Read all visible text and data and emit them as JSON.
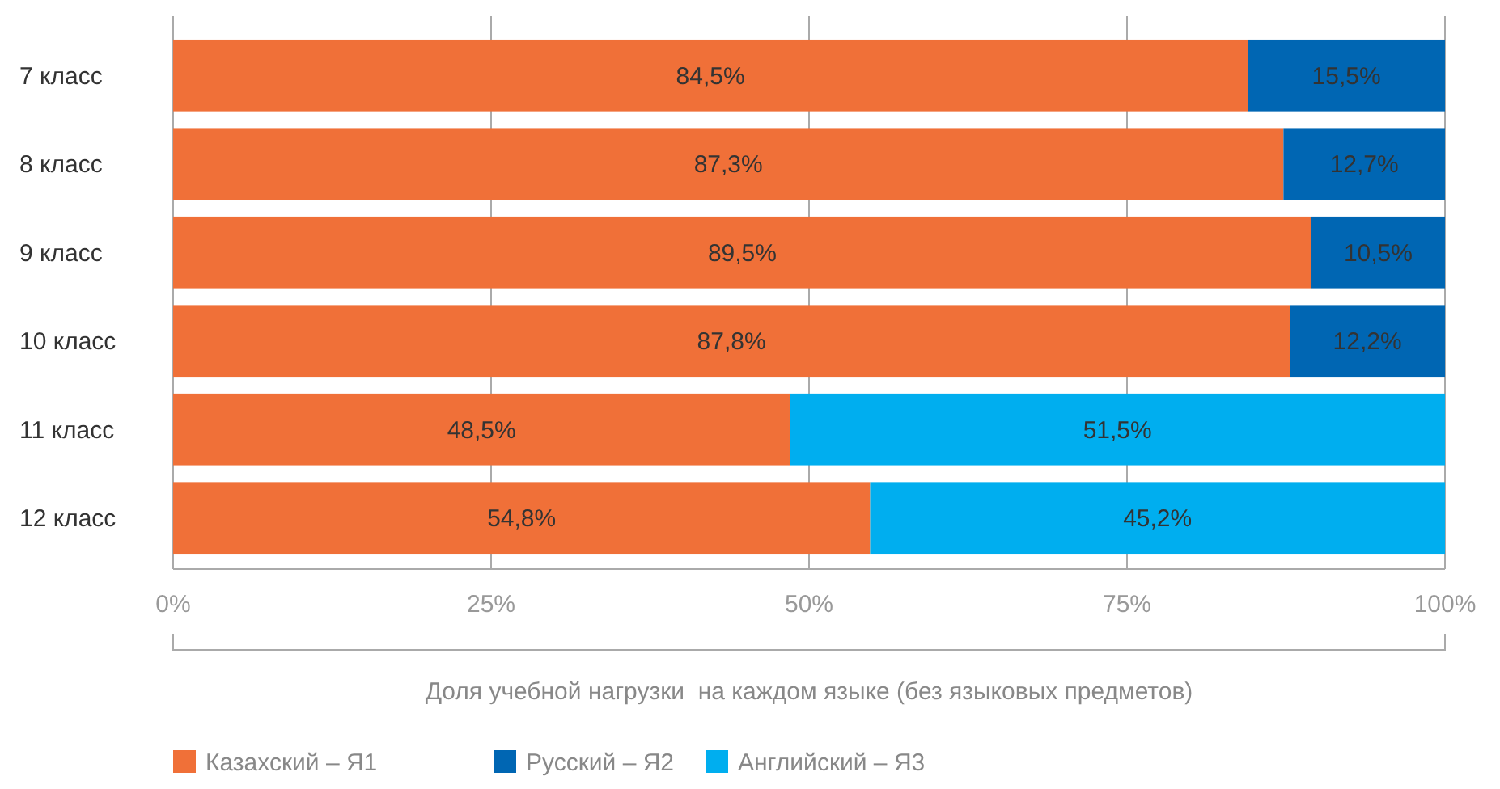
{
  "chart_data": {
    "type": "bar",
    "orientation": "horizontal",
    "stacked": true,
    "categories": [
      "7 класс",
      "8 класс",
      "9 класс",
      "10 класс",
      "11 класс",
      "12 класс"
    ],
    "series": [
      {
        "name": "Казахский – Я1",
        "color": "#f07038",
        "values": [
          84.5,
          87.3,
          89.5,
          87.8,
          48.5,
          54.8
        ],
        "value_labels": [
          "84,5%",
          "87,3%",
          "89,5%",
          "87,8%",
          "48,5%",
          "54,8%"
        ]
      },
      {
        "name": "Русский – Я2",
        "color": "#0066b3",
        "values": [
          15.5,
          12.7,
          10.5,
          12.2,
          null,
          null
        ],
        "value_labels": [
          "15,5%",
          "12,7%",
          "10,5%",
          "12,2%",
          null,
          null
        ]
      },
      {
        "name": "Английский – Я3",
        "color": "#00aeef",
        "values": [
          null,
          null,
          null,
          null,
          51.5,
          45.2
        ],
        "value_labels": [
          null,
          null,
          null,
          null,
          "51,5%",
          "45,2%"
        ]
      }
    ],
    "xlim": [
      0,
      100
    ],
    "xticks": [
      {
        "value": 0,
        "label": "0%"
      },
      {
        "value": 25,
        "label": "25%"
      },
      {
        "value": 50,
        "label": "50%"
      },
      {
        "value": 75,
        "label": "75%"
      },
      {
        "value": 100,
        "label": "100%"
      }
    ],
    "xlabel": "Доля учебной нагрузки  на каждом языке (без языковых предметов)",
    "grid": "x",
    "legend": "bottom left"
  }
}
